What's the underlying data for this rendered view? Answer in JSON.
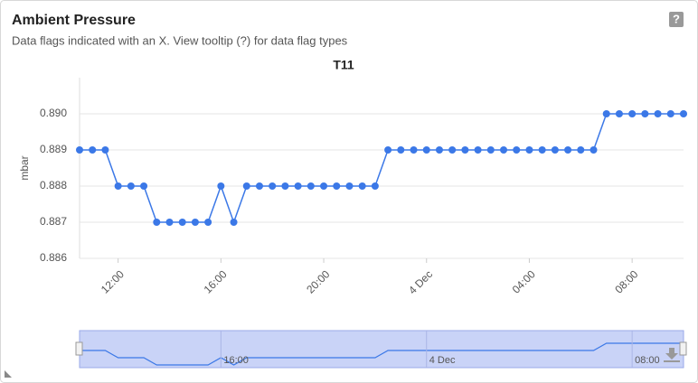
{
  "header": {
    "title": "Ambient Pressure",
    "subtitle": "Data flags indicated with an X. View tooltip (?) for data flag types"
  },
  "chart_data": {
    "type": "line",
    "title": "T11",
    "y_label": "mbar",
    "x": [
      10.5,
      11,
      11.5,
      12,
      12.5,
      13,
      13.5,
      14,
      14.5,
      15,
      15.5,
      16,
      16.5,
      17,
      17.5,
      18,
      18.5,
      19,
      19.5,
      20,
      20.5,
      21,
      21.5,
      22,
      22.5,
      23,
      23.5,
      24,
      24.5,
      25,
      25.5,
      26,
      26.5,
      27,
      27.5,
      28,
      28.5,
      29,
      29.5,
      30,
      30.5,
      31,
      31.5,
      32,
      32.5,
      33,
      33.5,
      34
    ],
    "series": [
      {
        "name": "T11",
        "color": "#3b78e7",
        "values": [
          0.889,
          0.889,
          0.889,
          0.888,
          0.888,
          0.888,
          0.887,
          0.887,
          0.887,
          0.887,
          0.887,
          0.888,
          0.887,
          0.888,
          0.888,
          0.888,
          0.888,
          0.888,
          0.888,
          0.888,
          0.888,
          0.888,
          0.888,
          0.888,
          0.889,
          0.889,
          0.889,
          0.889,
          0.889,
          0.889,
          0.889,
          0.889,
          0.889,
          0.889,
          0.889,
          0.889,
          0.889,
          0.889,
          0.889,
          0.889,
          0.889,
          0.89,
          0.89,
          0.89,
          0.89,
          0.89,
          0.89,
          0.89
        ]
      }
    ],
    "xlim": [
      10.5,
      34
    ],
    "xticks": [
      {
        "value": 12,
        "label": "12:00"
      },
      {
        "value": 16,
        "label": "16:00"
      },
      {
        "value": 20,
        "label": "20:00"
      },
      {
        "value": 24,
        "label": "4 Dec"
      },
      {
        "value": 28,
        "label": "04:00"
      },
      {
        "value": 32,
        "label": "08:00"
      }
    ],
    "ylim": [
      0.886,
      0.891
    ],
    "yticks": [
      {
        "value": 0.886,
        "label": "0.886"
      },
      {
        "value": 0.887,
        "label": "0.887"
      },
      {
        "value": 0.888,
        "label": "0.888"
      },
      {
        "value": 0.889,
        "label": "0.889"
      },
      {
        "value": 0.89,
        "label": "0.890"
      }
    ],
    "grid": true,
    "navigator": {
      "xticks": [
        {
          "value": 16,
          "label": "16:00"
        },
        {
          "value": 24,
          "label": "4 Dec"
        },
        {
          "value": 32,
          "label": "08:00"
        }
      ]
    }
  }
}
